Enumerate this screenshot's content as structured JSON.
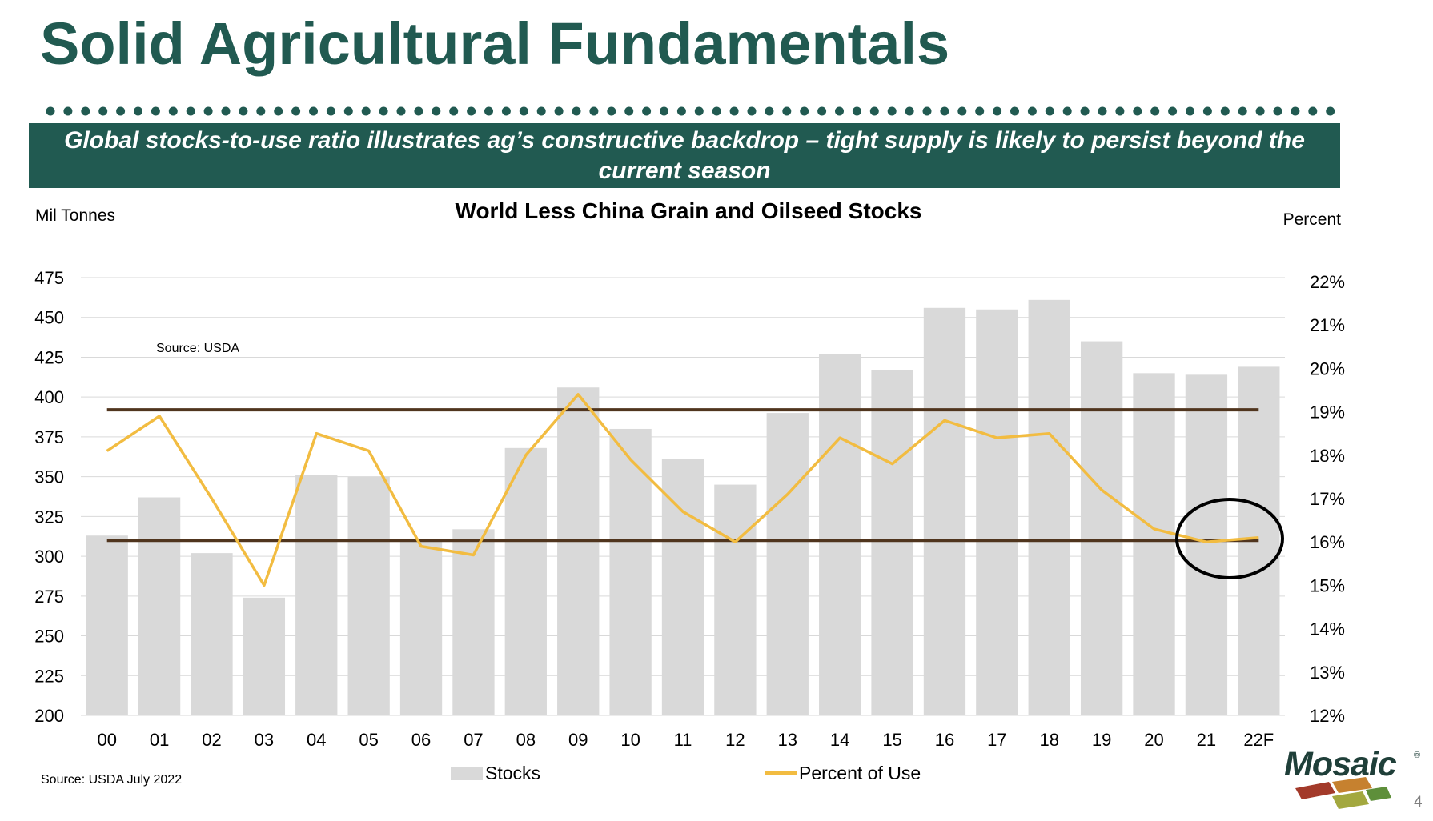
{
  "slide": {
    "title": "Solid Agricultural Fundamentals",
    "banner": "Global stocks-to-use ratio illustrates ag’s constructive backdrop – tight supply is likely to persist beyond the current season",
    "source_bottom": "Source: USDA July 2022",
    "page_number": "4",
    "logo_text": "Mosaic",
    "colors": {
      "title": "#215a51",
      "banner_bg": "#215a51",
      "dots": "#215a51"
    }
  },
  "chart_data": {
    "type": "bar",
    "title": "World Less China Grain and Oilseed Stocks",
    "y_left_label": "Mil Tonnes",
    "y_right_label": "Percent",
    "source_note": "Source: USDA",
    "categories": [
      "00",
      "01",
      "02",
      "03",
      "04",
      "05",
      "06",
      "07",
      "08",
      "09",
      "10",
      "11",
      "12",
      "13",
      "14",
      "15",
      "16",
      "17",
      "18",
      "19",
      "20",
      "21",
      "22F"
    ],
    "y_left_ticks": [
      "200",
      "225",
      "250",
      "275",
      "300",
      "325",
      "350",
      "375",
      "400",
      "425",
      "450",
      "475"
    ],
    "y_left_lim": [
      200,
      475
    ],
    "y_right_ticks": [
      "12%",
      "13%",
      "14%",
      "15%",
      "16%",
      "17%",
      "18%",
      "19%",
      "20%",
      "21%",
      "22%"
    ],
    "y_right_lim": [
      12,
      22
    ],
    "series": [
      {
        "name": "Stocks",
        "type": "bar",
        "axis": "left",
        "color": "#d9d9d9",
        "values": [
          313,
          337,
          302,
          274,
          351,
          350,
          311,
          317,
          368,
          406,
          380,
          361,
          345,
          390,
          427,
          417,
          456,
          455,
          461,
          435,
          415,
          414,
          419
        ]
      },
      {
        "name": "Percent of Use",
        "type": "line",
        "axis": "right",
        "color": "#f2bc41",
        "values": [
          18.1,
          18.9,
          17.0,
          15.0,
          18.5,
          18.1,
          15.9,
          15.7,
          18.0,
          19.4,
          17.9,
          16.7,
          16.0,
          17.1,
          18.4,
          17.8,
          18.8,
          18.4,
          18.5,
          17.2,
          16.3,
          16.0,
          16.1
        ]
      }
    ],
    "reference_lines": [
      {
        "axis": "left",
        "value": 392,
        "color": "#50351e"
      },
      {
        "axis": "left",
        "value": 310,
        "color": "#50351e"
      }
    ],
    "annotation": {
      "type": "circle",
      "around_category": "21"
    },
    "legend": [
      "Stocks",
      "Percent of Use"
    ],
    "legend_position": "bottom",
    "grid": true
  }
}
